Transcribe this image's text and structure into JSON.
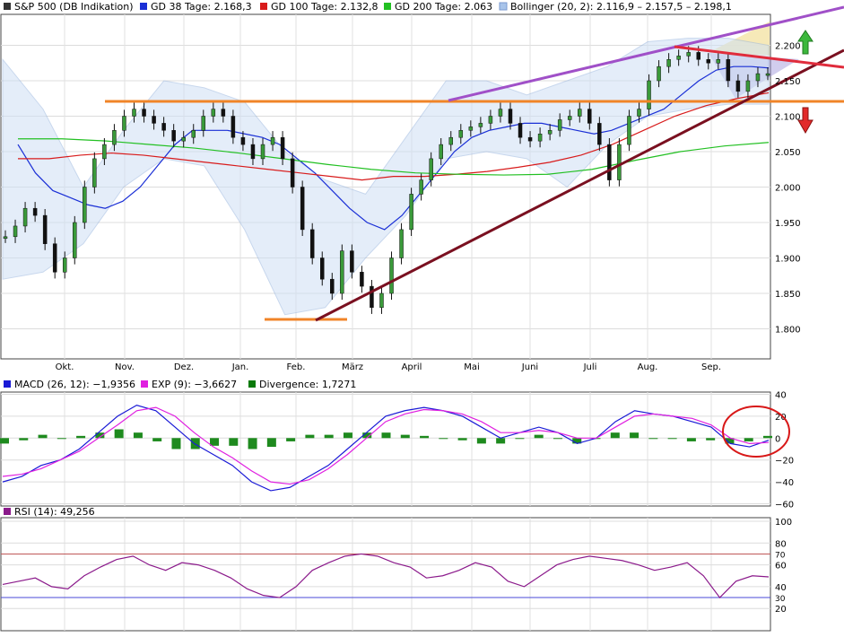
{
  "chart_data": [
    {
      "type": "line",
      "title": "S&P 500 (DB Indikation)",
      "ylim": [
        1770,
        2260
      ],
      "yticks": [
        1800,
        1850,
        1900,
        1950,
        2000,
        2050,
        2100,
        2150,
        2200
      ],
      "ytick_labels": [
        "1.800",
        "1.850",
        "1.900",
        "1.950",
        "2.000",
        "2.050",
        "2.100",
        "2.150",
        "2.200"
      ],
      "x_tick_labels": [
        "Okt.",
        "Nov.",
        "Dez.",
        "Jan.",
        "Feb.",
        "März",
        "April",
        "Mai",
        "Juni",
        "Juli",
        "Aug.",
        "Sep."
      ],
      "legend": [
        {
          "label": "S&P 500 (DB Indikation)",
          "color": "#333333"
        },
        {
          "label": "GD 38 Tage: 2.168,3",
          "color": "#1a2fd6"
        },
        {
          "label": "GD 100 Tage: 2.132,8",
          "color": "#d81b1b"
        },
        {
          "label": "GD 200 Tage: 2.063",
          "color": "#22c022"
        },
        {
          "label": "Bollinger (20, 2): 2.116,9 – 2.157,5 – 2.198,1",
          "color": "#a8c4ea"
        }
      ],
      "series": [
        {
          "name": "S&P 500 (DB Indikation)",
          "values": [
            1930,
            1945,
            1970,
            1960,
            1920,
            1880,
            1900,
            1950,
            2000,
            2040,
            2060,
            2080,
            2100,
            2110,
            2100,
            2090,
            2080,
            2065,
            2070,
            2080,
            2100,
            2110,
            2100,
            2070,
            2060,
            2040,
            2060,
            2070,
            2040,
            2000,
            1940,
            1900,
            1870,
            1850,
            1910,
            1880,
            1860,
            1830,
            1850,
            1900,
            1940,
            1990,
            2010,
            2040,
            2060,
            2070,
            2080,
            2085,
            2090,
            2100,
            2110,
            2090,
            2070,
            2065,
            2075,
            2080,
            2095,
            2100,
            2110,
            2090,
            2060,
            2010,
            2060,
            2100,
            2110,
            2150,
            2170,
            2180,
            2185,
            2190,
            2180,
            2175,
            2180,
            2150,
            2135,
            2150,
            2160,
            2160
          ]
        },
        {
          "name": "GD 38 Tage: 2.168,3",
          "values": [
            2060,
            2020,
            1995,
            1985,
            1975,
            1970,
            1980,
            2000,
            2030,
            2060,
            2080,
            2080,
            2080,
            2075,
            2070,
            2060,
            2040,
            2020,
            1995,
            1970,
            1950,
            1940,
            1960,
            1990,
            2020,
            2050,
            2070,
            2080,
            2085,
            2090,
            2090,
            2085,
            2080,
            2075,
            2080,
            2090,
            2100,
            2110,
            2130,
            2150,
            2165,
            2170,
            2170,
            2168
          ]
        },
        {
          "name": "GD 100 Tage: 2.132,8",
          "values": [
            2040,
            2040,
            2045,
            2048,
            2045,
            2040,
            2035,
            2030,
            2025,
            2020,
            2015,
            2010,
            2015,
            2015,
            2018,
            2022,
            2028,
            2035,
            2045,
            2060,
            2080,
            2100,
            2115,
            2125,
            2133
          ]
        },
        {
          "name": "GD 200 Tage: 2.063",
          "values": [
            2068,
            2068,
            2065,
            2060,
            2055,
            2048,
            2040,
            2032,
            2025,
            2020,
            2018,
            2017,
            2018,
            2025,
            2038,
            2050,
            2058,
            2063
          ]
        },
        {
          "name": "Bollinger (20, 2): 2.116,9 – 2.157,5 – 2.198,1",
          "upper": [
            2180,
            2110,
            2000,
            2080,
            2150,
            2140,
            2120,
            2050,
            2010,
            1990,
            2070,
            2150,
            2150,
            2130,
            2150,
            2170,
            2205,
            2210,
            2210,
            2200
          ],
          "lower": [
            1870,
            1880,
            1920,
            2000,
            2040,
            2030,
            1940,
            1820,
            1830,
            1900,
            1960,
            2040,
            2050,
            2040,
            2000,
            2060,
            2100,
            2110,
            2117,
            2117
          ]
        }
      ],
      "annotations": [
        "horizontal line 2.112",
        "horizontal line 1.812",
        "rising trendline",
        "upper channel line",
        "falling red resistance line",
        "green up arrow",
        "red down arrow"
      ]
    },
    {
      "type": "line",
      "title": "MACD (26, 12)",
      "ylim": [
        -62,
        42
      ],
      "yticks": [
        40,
        20,
        0,
        -20,
        -40,
        -60
      ],
      "ytick_labels": [
        "40",
        "20",
        "0",
        "−20",
        "−40",
        "−60"
      ],
      "legend": [
        {
          "label": "MACD (26, 12): −1,9356",
          "color": "#1a1ad6"
        },
        {
          "label": "EXP (9): −3,6627",
          "color": "#e020e0"
        },
        {
          "label": "Divergence: 1,7271",
          "color": "#0b7a0b"
        }
      ],
      "series": [
        {
          "name": "MACD (26, 12): −1,9356",
          "values": [
            -40,
            -35,
            -25,
            -20,
            -10,
            5,
            20,
            30,
            25,
            10,
            -5,
            -15,
            -25,
            -40,
            -48,
            -45,
            -35,
            -25,
            -10,
            5,
            20,
            25,
            28,
            25,
            20,
            10,
            0,
            5,
            10,
            5,
            -5,
            0,
            15,
            25,
            22,
            20,
            15,
            10,
            -5,
            -8,
            -2
          ]
        },
        {
          "name": "EXP (9): −3,6627",
          "values": [
            -35,
            -33,
            -28,
            -20,
            -12,
            0,
            12,
            25,
            28,
            20,
            5,
            -8,
            -18,
            -30,
            -40,
            -42,
            -38,
            -28,
            -15,
            0,
            15,
            22,
            26,
            25,
            22,
            15,
            5,
            5,
            7,
            5,
            0,
            0,
            10,
            20,
            22,
            20,
            18,
            12,
            0,
            -5,
            -4
          ]
        },
        {
          "name": "Divergence: 1,7271",
          "values": [
            -5,
            -2,
            3,
            0,
            2,
            5,
            8,
            5,
            -3,
            -10,
            -10,
            -7,
            -7,
            -10,
            -8,
            -3,
            3,
            3,
            5,
            5,
            5,
            3,
            2,
            0,
            -2,
            -5,
            -5,
            0,
            3,
            0,
            -5,
            0,
            5,
            5,
            0,
            0,
            -3,
            -2,
            -5,
            -3,
            2
          ]
        }
      ]
    },
    {
      "type": "line",
      "title": "RSI (14)",
      "ylim": [
        0,
        100
      ],
      "yticks": [
        100,
        80,
        60,
        40,
        20
      ],
      "ytick_labels": [
        "100",
        "80",
        "60",
        "40",
        "20"
      ],
      "reference_lines": [
        {
          "value": 70,
          "label": "70",
          "color": "#c05858"
        },
        {
          "value": 30,
          "label": "30",
          "color": "#4a4ad8"
        }
      ],
      "legend": [
        {
          "label": "RSI (14): 49,256",
          "color": "#8b1a8b"
        }
      ],
      "series": [
        {
          "name": "RSI (14): 49,256",
          "values": [
            42,
            45,
            48,
            40,
            38,
            50,
            58,
            65,
            68,
            60,
            55,
            62,
            60,
            55,
            48,
            38,
            32,
            30,
            40,
            55,
            62,
            68,
            70,
            68,
            62,
            58,
            48,
            50,
            55,
            62,
            58,
            45,
            40,
            50,
            60,
            65,
            68,
            66,
            64,
            60,
            55,
            58,
            62,
            50,
            30,
            45,
            50,
            49
          ]
        }
      ]
    }
  ]
}
